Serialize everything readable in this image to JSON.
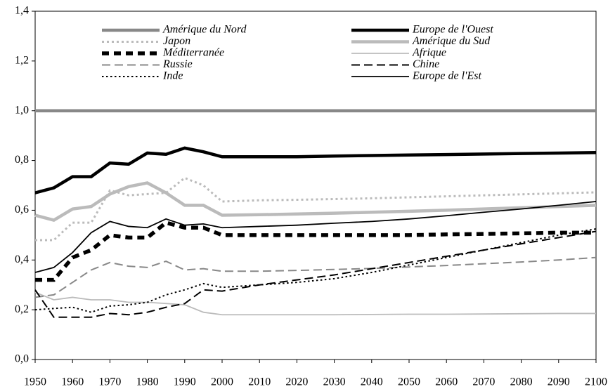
{
  "chart_data": {
    "type": "line",
    "x": [
      1950,
      1955,
      1960,
      1965,
      1970,
      1975,
      1980,
      1985,
      1990,
      1995,
      2000,
      2010,
      2020,
      2030,
      2040,
      2050,
      2060,
      2070,
      2080,
      2090,
      2100
    ],
    "xlim": [
      1950,
      2100
    ],
    "xticks": [
      1950,
      1960,
      1970,
      1980,
      1990,
      2000,
      2010,
      2020,
      2030,
      2040,
      2050,
      2060,
      2070,
      2080,
      2090,
      2100
    ],
    "ylim": [
      0,
      1.4
    ],
    "yticks": [
      {
        "value": 0,
        "label": "0,0"
      },
      {
        "value": 0.2,
        "label": "0,2"
      },
      {
        "value": 0.4,
        "label": "0,4"
      },
      {
        "value": 0.6,
        "label": "0,6"
      },
      {
        "value": 0.8,
        "label": "0,8"
      },
      {
        "value": 1.0,
        "label": "1,0"
      },
      {
        "value": 1.2,
        "label": "1,2"
      },
      {
        "value": 1.4,
        "label": "1,4"
      }
    ],
    "series": [
      {
        "name": "Amérique du Nord",
        "color": "#888888",
        "style": "solid-thick",
        "values": [
          1,
          1,
          1,
          1,
          1,
          1,
          1,
          1,
          1,
          1,
          1,
          1,
          1,
          1,
          1,
          1,
          1,
          1,
          1,
          1,
          1
        ]
      },
      {
        "name": "Europe de l'Ouest",
        "color": "#000000",
        "style": "solid-thick",
        "values": [
          0.67,
          0.69,
          0.735,
          0.735,
          0.79,
          0.785,
          0.83,
          0.825,
          0.85,
          0.835,
          0.815,
          0.815,
          0.815,
          0.818,
          0.82,
          0.822,
          0.824,
          0.826,
          0.828,
          0.83,
          0.832
        ]
      },
      {
        "name": "Japon",
        "color": "#bbbbbb",
        "style": "dotted-thick",
        "values": [
          0.48,
          0.48,
          0.55,
          0.55,
          0.68,
          0.66,
          0.665,
          0.67,
          0.73,
          0.7,
          0.635,
          0.64,
          0.642,
          0.645,
          0.648,
          0.652,
          0.656,
          0.66,
          0.664,
          0.668,
          0.672
        ]
      },
      {
        "name": "Amérique du Sud",
        "color": "#bbbbbb",
        "style": "solid-thick",
        "values": [
          0.58,
          0.56,
          0.605,
          0.615,
          0.665,
          0.695,
          0.71,
          0.67,
          0.62,
          0.62,
          0.58,
          0.582,
          0.585,
          0.588,
          0.592,
          0.596,
          0.6,
          0.605,
          0.61,
          0.615,
          0.62
        ]
      },
      {
        "name": "Méditerranée",
        "color": "#000000",
        "style": "dashed-thick",
        "values": [
          0.32,
          0.32,
          0.41,
          0.44,
          0.5,
          0.49,
          0.49,
          0.55,
          0.53,
          0.53,
          0.5,
          0.5,
          0.5,
          0.5,
          0.5,
          0.5,
          0.503,
          0.505,
          0.507,
          0.51,
          0.51
        ]
      },
      {
        "name": "Afrique",
        "color": "#bbbbbb",
        "style": "solid-thin",
        "values": [
          0.27,
          0.24,
          0.25,
          0.24,
          0.24,
          0.23,
          0.23,
          0.225,
          0.22,
          0.19,
          0.18,
          0.18,
          0.18,
          0.18,
          0.181,
          0.182,
          0.182,
          0.183,
          0.184,
          0.185,
          0.185
        ]
      },
      {
        "name": "Russie",
        "color": "#888888",
        "style": "dashed-thin",
        "values": [
          0.25,
          0.26,
          0.31,
          0.36,
          0.39,
          0.375,
          0.37,
          0.395,
          0.36,
          0.365,
          0.355,
          0.355,
          0.358,
          0.362,
          0.366,
          0.372,
          0.378,
          0.385,
          0.392,
          0.4,
          0.41
        ]
      },
      {
        "name": "Chine",
        "color": "#000000",
        "style": "dashed-thin",
        "values": [
          0.28,
          0.17,
          0.17,
          0.17,
          0.185,
          0.18,
          0.19,
          0.21,
          0.225,
          0.28,
          0.275,
          0.3,
          0.32,
          0.34,
          0.365,
          0.39,
          0.415,
          0.44,
          0.465,
          0.49,
          0.515
        ]
      },
      {
        "name": "Inde",
        "color": "#000000",
        "style": "dotted-thin",
        "values": [
          0.2,
          0.205,
          0.21,
          0.19,
          0.215,
          0.22,
          0.23,
          0.26,
          0.28,
          0.305,
          0.29,
          0.3,
          0.31,
          0.325,
          0.35,
          0.38,
          0.41,
          0.44,
          0.47,
          0.5,
          0.525
        ]
      },
      {
        "name": "Europe de l'Est",
        "color": "#000000",
        "style": "solid-thin",
        "values": [
          0.35,
          0.37,
          0.43,
          0.51,
          0.555,
          0.535,
          0.53,
          0.565,
          0.54,
          0.545,
          0.53,
          0.535,
          0.54,
          0.548,
          0.555,
          0.565,
          0.578,
          0.592,
          0.605,
          0.62,
          0.635
        ]
      }
    ]
  }
}
